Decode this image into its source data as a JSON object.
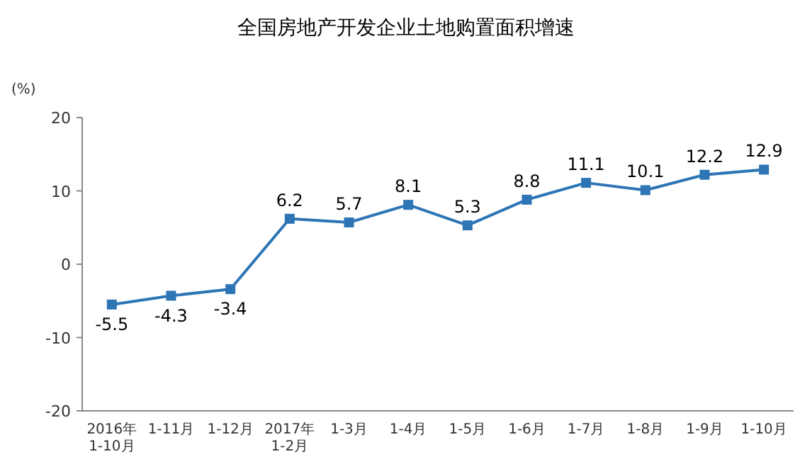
{
  "chart_data": {
    "type": "line",
    "title": "全国房地产开发企业土地购置面积增速",
    "ylabel": "(%)",
    "categories": [
      "2016年\n1-10月",
      "1-11月",
      "1-12月",
      "2017年\n1-2月",
      "1-3月",
      "1-4月",
      "1-5月",
      "1-6月",
      "1-7月",
      "1-8月",
      "1-9月",
      "1-10月"
    ],
    "series": [
      {
        "color": "#2e75b6",
        "values": [
          -5.5,
          -4.3,
          -3.4,
          6.2,
          5.7,
          8.1,
          5.3,
          8.8,
          11.1,
          10.1,
          12.2,
          12.9
        ]
      }
    ],
    "ylim": [
      -20,
      20
    ],
    "yticks": [
      -20,
      -10,
      0,
      10,
      20
    ],
    "data_labels": true,
    "marker": "square",
    "line_style": "solid"
  }
}
